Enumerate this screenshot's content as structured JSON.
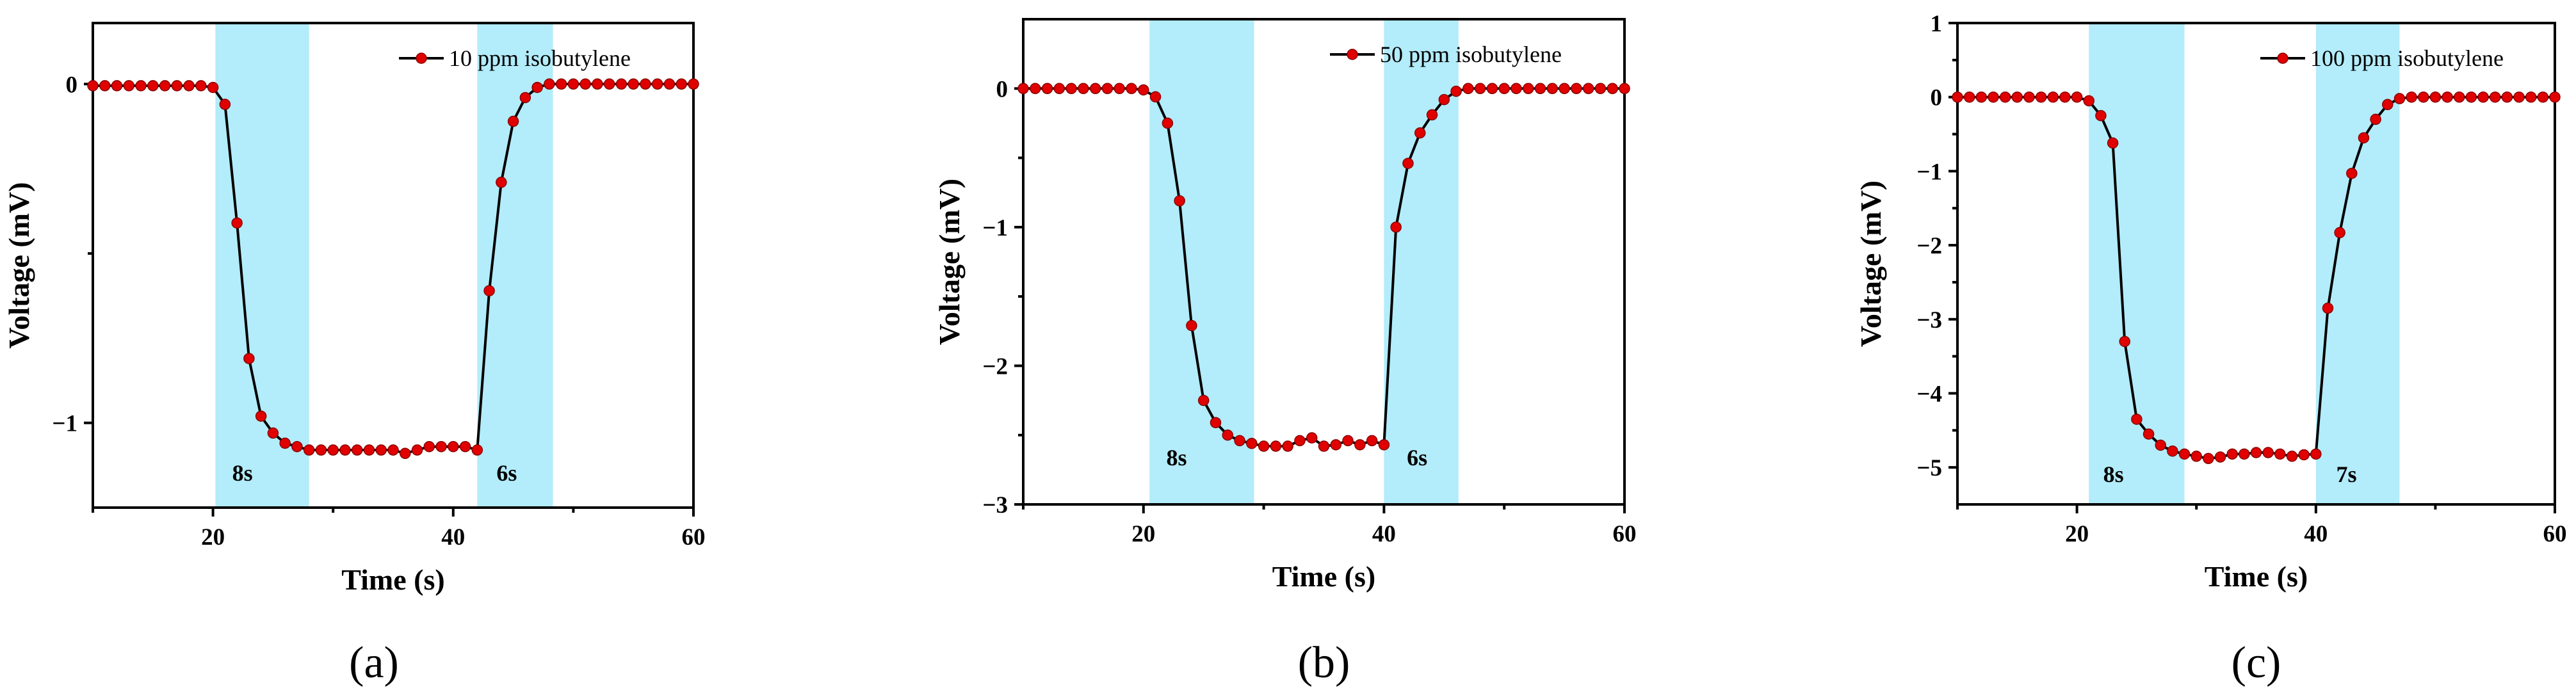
{
  "colors": {
    "series_line": "#000000",
    "series_marker": "#e00000",
    "shade": "#b3ecfa"
  },
  "chart_data": [
    {
      "type": "line",
      "panel_label": "(a)",
      "xlabel": "Time (s)",
      "ylabel": "Voltage (mV)",
      "xlim": [
        10,
        60
      ],
      "ylim": [
        -1.25,
        0.18
      ],
      "xticks": [
        20,
        40,
        60
      ],
      "xtick_labels": [
        "20",
        "40",
        "60"
      ],
      "yticks": [
        0,
        -1
      ],
      "ytick_labels": [
        "0",
        "−1"
      ],
      "minor_yticks": [
        -0.5
      ],
      "grid": false,
      "legend_position": "top-right",
      "series": [
        {
          "name": "10 ppm isobutylene",
          "x": [
            10,
            11,
            12,
            13,
            14,
            15,
            16,
            17,
            18,
            19,
            20,
            21,
            22,
            23,
            24,
            25,
            26,
            27,
            28,
            29,
            30,
            31,
            32,
            33,
            34,
            35,
            36,
            37,
            38,
            39,
            40,
            41,
            42,
            43,
            44,
            45,
            46,
            47,
            48,
            49,
            50,
            51,
            52,
            53,
            54,
            55,
            56,
            57,
            58,
            59,
            60
          ],
          "y": [
            -0.005,
            -0.005,
            -0.005,
            -0.005,
            -0.005,
            -0.005,
            -0.005,
            -0.005,
            -0.005,
            -0.005,
            -0.01,
            -0.06,
            -0.41,
            -0.81,
            -0.98,
            -1.03,
            -1.06,
            -1.07,
            -1.08,
            -1.08,
            -1.08,
            -1.08,
            -1.08,
            -1.08,
            -1.08,
            -1.08,
            -1.09,
            -1.08,
            -1.07,
            -1.07,
            -1.07,
            -1.07,
            -1.08,
            -0.61,
            -0.29,
            -0.11,
            -0.04,
            -0.01,
            0.0,
            0.0,
            0.0,
            0.0,
            0.0,
            0.0,
            0.0,
            0.0,
            0.0,
            0.0,
            0.0,
            0.0,
            0.0
          ]
        }
      ],
      "shaded_regions": [
        [
          20.2,
          28.0
        ],
        [
          42.0,
          48.3
        ]
      ],
      "annotations": [
        {
          "text": "8s",
          "x": 21.6,
          "y": -1.11
        },
        {
          "text": "6s",
          "x": 43.6,
          "y": -1.11
        }
      ]
    },
    {
      "type": "line",
      "panel_label": "(b)",
      "xlabel": "Time (s)",
      "ylabel": "Voltage (mV)",
      "xlim": [
        10,
        60
      ],
      "ylim": [
        -3.0,
        0.5
      ],
      "xticks": [
        20,
        40,
        60
      ],
      "xtick_labels": [
        "20",
        "40",
        "60"
      ],
      "yticks": [
        0,
        -1,
        -2,
        -3
      ],
      "ytick_labels": [
        "0",
        "−1",
        "−2",
        "−3"
      ],
      "minor_yticks": [
        -0.5,
        -1.5,
        -2.5
      ],
      "grid": false,
      "legend_position": "top-right",
      "series": [
        {
          "name": "50 ppm isobutylene",
          "x": [
            10,
            11,
            12,
            13,
            14,
            15,
            16,
            17,
            18,
            19,
            20,
            21,
            22,
            23,
            24,
            25,
            26,
            27,
            28,
            29,
            30,
            31,
            32,
            33,
            34,
            35,
            36,
            37,
            38,
            39,
            40,
            41,
            42,
            43,
            44,
            45,
            46,
            47,
            48,
            49,
            50,
            51,
            52,
            53,
            54,
            55,
            56,
            57,
            58,
            59,
            60
          ],
          "y": [
            0.0,
            0.0,
            0.0,
            0.0,
            0.0,
            0.0,
            0.0,
            0.0,
            0.0,
            0.0,
            -0.01,
            -0.06,
            -0.25,
            -0.81,
            -1.71,
            -2.25,
            -2.41,
            -2.5,
            -2.54,
            -2.56,
            -2.58,
            -2.58,
            -2.58,
            -2.54,
            -2.52,
            -2.58,
            -2.57,
            -2.54,
            -2.57,
            -2.54,
            -2.57,
            -1.0,
            -0.54,
            -0.32,
            -0.19,
            -0.08,
            -0.02,
            0.0,
            0.0,
            0.0,
            0.0,
            0.0,
            0.0,
            0.0,
            0.0,
            0.0,
            0.0,
            0.0,
            0.0,
            0.0,
            0.0
          ]
        }
      ],
      "shaded_regions": [
        [
          20.5,
          29.2
        ],
        [
          40.0,
          46.2
        ]
      ],
      "annotations": [
        {
          "text": "8s",
          "x": 21.9,
          "y": -2.57
        },
        {
          "text": "6s",
          "x": 41.9,
          "y": -2.57
        }
      ]
    },
    {
      "type": "line",
      "panel_label": "(c)",
      "xlabel": "Time (s)",
      "ylabel": "Voltage (mV)",
      "xlim": [
        10,
        60
      ],
      "ylim": [
        -5.5,
        1.0
      ],
      "xticks": [
        20,
        40,
        60
      ],
      "xtick_labels": [
        "20",
        "40",
        "60"
      ],
      "yticks": [
        1,
        0,
        -1,
        -2,
        -3,
        -4,
        -5
      ],
      "ytick_labels": [
        "1",
        "0",
        "−1",
        "−2",
        "−3",
        "−4",
        "−5"
      ],
      "minor_yticks": [
        0.5,
        -0.5,
        -1.5,
        -2.5,
        -3.5,
        -4.5
      ],
      "grid": false,
      "legend_position": "top-right",
      "series": [
        {
          "name": "100 ppm isobutylene",
          "x": [
            10,
            11,
            12,
            13,
            14,
            15,
            16,
            17,
            18,
            19,
            20,
            21,
            22,
            23,
            24,
            25,
            26,
            27,
            28,
            29,
            30,
            31,
            32,
            33,
            34,
            35,
            36,
            37,
            38,
            39,
            40,
            41,
            42,
            43,
            44,
            45,
            46,
            47,
            48,
            49,
            50,
            51,
            52,
            53,
            54,
            55,
            56,
            57,
            58,
            59,
            60
          ],
          "y": [
            0.0,
            0.0,
            0.0,
            0.0,
            0.0,
            0.0,
            0.0,
            0.0,
            0.0,
            0.0,
            0.0,
            -0.05,
            -0.25,
            -0.62,
            -3.3,
            -4.35,
            -4.55,
            -4.7,
            -4.78,
            -4.82,
            -4.85,
            -4.88,
            -4.86,
            -4.82,
            -4.82,
            -4.8,
            -4.8,
            -4.82,
            -4.85,
            -4.83,
            -4.82,
            -2.85,
            -1.83,
            -1.03,
            -0.55,
            -0.3,
            -0.1,
            -0.02,
            0.0,
            0.0,
            0.0,
            0.0,
            0.0,
            0.0,
            0.0,
            0.0,
            0.0,
            0.0,
            0.0,
            0.0,
            0.0
          ]
        }
      ],
      "shaded_regions": [
        [
          21.0,
          29.0
        ],
        [
          40.0,
          47.0
        ]
      ],
      "annotations": [
        {
          "text": "8s",
          "x": 22.2,
          "y": -4.92
        },
        {
          "text": "7s",
          "x": 41.7,
          "y": -4.92
        }
      ]
    }
  ]
}
